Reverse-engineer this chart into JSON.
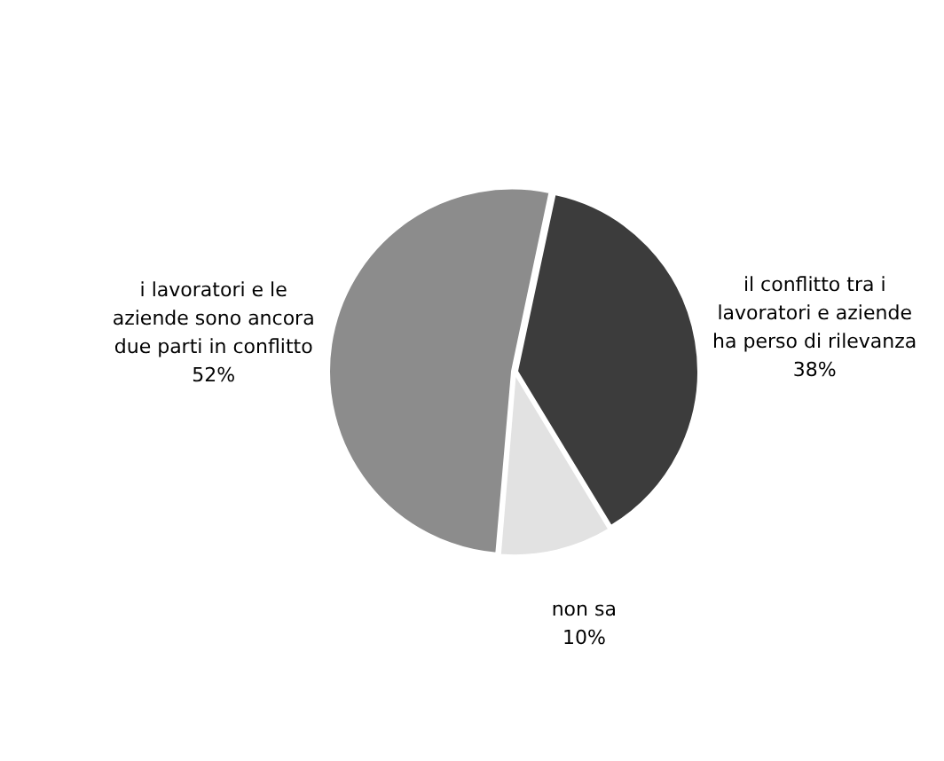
{
  "chart_data": {
    "type": "pie",
    "categories": [
      "il conflitto tra i lavoratori e aziende ha perso di rilevanza",
      "non sa",
      "i lavoratori e le aziende sono ancora due parti in conflitto"
    ],
    "values": [
      38,
      10,
      52
    ],
    "colors": [
      "#3c3c3c",
      "#e2e2e2",
      "#8c8c8c"
    ],
    "value_labels": [
      "38%",
      "10%",
      "52%"
    ],
    "legend": false
  }
}
